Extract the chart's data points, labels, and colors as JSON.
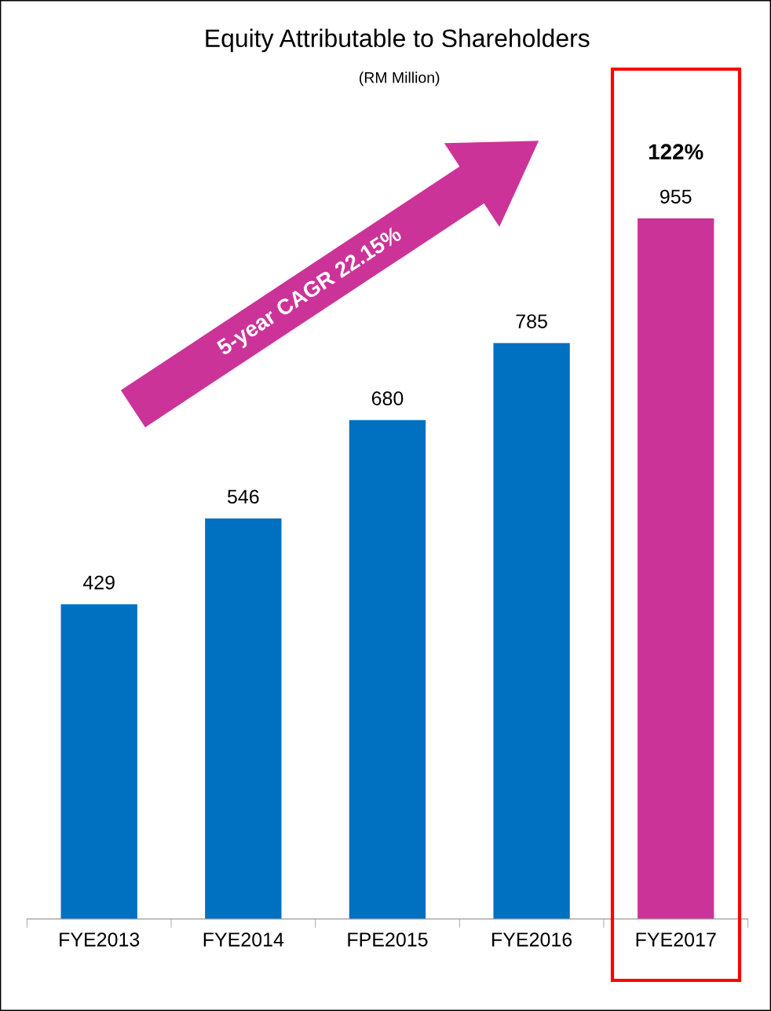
{
  "chart_data": {
    "type": "bar",
    "title": "Equity Attributable to Shareholders",
    "subtitle": "(RM Million)",
    "categories": [
      "FYE2013",
      "FYE2014",
      "FPE2015",
      "FYE2016",
      "FYE2017"
    ],
    "values": [
      429,
      546,
      680,
      785,
      955
    ],
    "colors": [
      "#0070c0",
      "#0070c0",
      "#0070c0",
      "#0070c0",
      "#cc3399"
    ],
    "data_labels": true,
    "grid": false,
    "legend": false,
    "annotations": [
      "122%",
      "5-year CAGR 22.15%"
    ]
  }
}
